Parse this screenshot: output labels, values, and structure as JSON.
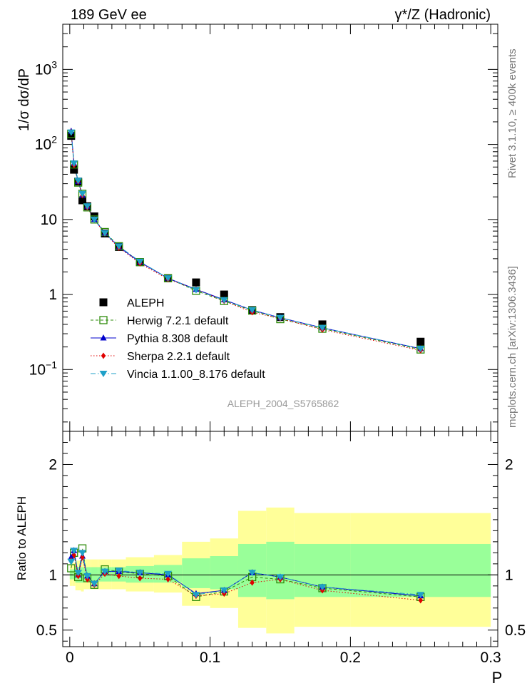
{
  "header": {
    "left_title": "189 GeV ee",
    "right_title": "γ*/Z (Hadronic)",
    "side_rivet": "Rivet 3.1.10, ≥ 400k events",
    "side_mcplots": "mcplots.cern.ch [arXiv:1306.3436]",
    "analysis_id": "ALEPH_2004_S5765862"
  },
  "colors": {
    "data": "#000000",
    "herwig": "#2e8b0a",
    "pythia": "#0000cc",
    "sherpa": "#e00000",
    "vincia": "#1fa0c8",
    "band_inner": "#99ff99",
    "band_outer": "#ffff99"
  },
  "chart_data": [
    {
      "type": "scatter",
      "panel": "main",
      "ylabel": "1/σ  dσ/dP",
      "yscale": "log",
      "xlim": [
        -0.005,
        0.305
      ],
      "ylim": [
        0.015,
        4000
      ],
      "y_ticks": [
        {
          "value": 0.1,
          "base": "10",
          "exp": "−1"
        },
        {
          "value": 1,
          "label": "1"
        },
        {
          "value": 10,
          "label": "10"
        },
        {
          "value": 100,
          "base": "10",
          "exp": "2"
        },
        {
          "value": 1000,
          "base": "10",
          "exp": "3"
        }
      ],
      "x": [
        0.001,
        0.003,
        0.006,
        0.009,
        0.0125,
        0.0175,
        0.025,
        0.035,
        0.05,
        0.07,
        0.09,
        0.11,
        0.13,
        0.15,
        0.18,
        0.25
      ],
      "series": [
        {
          "name": "ALEPH",
          "key": "data",
          "marker": "square-filled",
          "y": [
            130,
            46,
            32,
            18,
            15,
            11,
            6.5,
            4.3,
            2.7,
            1.65,
            1.45,
            1.0,
            0.62,
            0.5,
            0.4,
            0.235
          ]
        },
        {
          "name": "Herwig 7.2.1 default",
          "key": "herwig",
          "marker": "square-open",
          "line": "dashed",
          "y": [
            138,
            54,
            31,
            22,
            14.5,
            10,
            6.8,
            4.4,
            2.7,
            1.65,
            1.12,
            0.82,
            0.61,
            0.47,
            0.35,
            0.185
          ]
        },
        {
          "name": "Pythia 8.308 default",
          "key": "pythia",
          "marker": "triangle-up",
          "line": "solid",
          "y": [
            150,
            56,
            32,
            21,
            15,
            10,
            6.6,
            4.3,
            2.7,
            1.65,
            1.17,
            0.85,
            0.62,
            0.49,
            0.36,
            0.19
          ]
        },
        {
          "name": "Sherpa 2.2.1 default",
          "key": "sherpa",
          "marker": "diamond",
          "line": "dotted",
          "y": [
            147,
            53,
            32,
            21,
            14.5,
            10,
            6.5,
            4.2,
            2.6,
            1.6,
            1.17,
            0.82,
            0.58,
            0.48,
            0.34,
            0.18
          ]
        },
        {
          "name": "Vincia 1.1.00_8.176 default",
          "key": "vincia",
          "marker": "triangle-down",
          "line": "dashdot",
          "y": [
            145,
            56,
            33,
            22,
            15,
            10,
            6.6,
            4.4,
            2.75,
            1.65,
            1.15,
            0.84,
            0.62,
            0.49,
            0.36,
            0.19
          ]
        }
      ]
    },
    {
      "type": "scatter",
      "panel": "ratio",
      "ylabel": "Ratio to ALEPH",
      "xlabel": "P",
      "xlim": [
        -0.005,
        0.305
      ],
      "ylim": [
        0.35,
        2.3
      ],
      "x_ticks": [
        0,
        0.1,
        0.2,
        0.3
      ],
      "y_ticks": [
        0.5,
        1,
        2
      ],
      "reference_line": 1,
      "x": [
        0.001,
        0.003,
        0.006,
        0.009,
        0.0125,
        0.0175,
        0.025,
        0.035,
        0.05,
        0.07,
        0.09,
        0.11,
        0.13,
        0.15,
        0.18,
        0.25
      ],
      "bands": {
        "edges": [
          0,
          0.002,
          0.004,
          0.008,
          0.01,
          0.015,
          0.02,
          0.03,
          0.04,
          0.06,
          0.08,
          0.1,
          0.12,
          0.14,
          0.16,
          0.2,
          0.3
        ],
        "inner_low": [
          0.96,
          0.96,
          0.93,
          0.93,
          0.94,
          0.94,
          0.94,
          0.94,
          0.93,
          0.93,
          0.88,
          0.87,
          0.8,
          0.78,
          0.8,
          0.8
        ],
        "inner_high": [
          1.05,
          1.05,
          1.07,
          1.07,
          1.07,
          1.07,
          1.07,
          1.07,
          1.08,
          1.09,
          1.15,
          1.17,
          1.28,
          1.3,
          1.28,
          1.28
        ],
        "outer_low": [
          0.9,
          0.9,
          0.86,
          0.85,
          0.87,
          0.87,
          0.87,
          0.87,
          0.85,
          0.84,
          0.72,
          0.7,
          0.52,
          0.47,
          0.53,
          0.53
        ],
        "outer_high": [
          1.11,
          1.11,
          1.13,
          1.14,
          1.14,
          1.14,
          1.14,
          1.14,
          1.16,
          1.18,
          1.3,
          1.33,
          1.58,
          1.61,
          1.56,
          1.56
        ]
      },
      "series": [
        {
          "name": "Herwig 7.2.1 default",
          "key": "herwig",
          "marker": "square-open",
          "line": "dashed",
          "y": [
            1.06,
            1.2,
            0.98,
            1.24,
            0.97,
            0.91,
            1.05,
            1.03,
            1.01,
            0.99,
            0.8,
            0.85,
            0.98,
            0.96,
            0.88,
            0.8
          ]
        },
        {
          "name": "Pythia 8.308 default",
          "key": "pythia",
          "marker": "triangle-up",
          "line": "solid",
          "y": [
            1.16,
            1.22,
            1.0,
            1.17,
            0.99,
            0.92,
            1.03,
            1.03,
            1.02,
            1.0,
            0.83,
            0.86,
            1.02,
            0.98,
            0.89,
            0.81
          ]
        },
        {
          "name": "Sherpa 2.2.1 default",
          "key": "sherpa",
          "marker": "diamond",
          "line": "dotted",
          "y": [
            1.13,
            1.18,
            0.99,
            1.16,
            0.96,
            0.91,
            1.01,
            0.99,
            0.97,
            0.96,
            0.81,
            0.83,
            0.93,
            0.96,
            0.86,
            0.77
          ]
        },
        {
          "name": "Vincia 1.1.00_8.176 default",
          "key": "vincia",
          "marker": "triangle-down",
          "line": "dashdot",
          "y": [
            1.12,
            1.22,
            1.02,
            1.2,
            0.99,
            0.92,
            1.03,
            1.04,
            1.02,
            1.01,
            0.82,
            0.86,
            1.02,
            0.98,
            0.89,
            0.82
          ]
        }
      ]
    }
  ]
}
